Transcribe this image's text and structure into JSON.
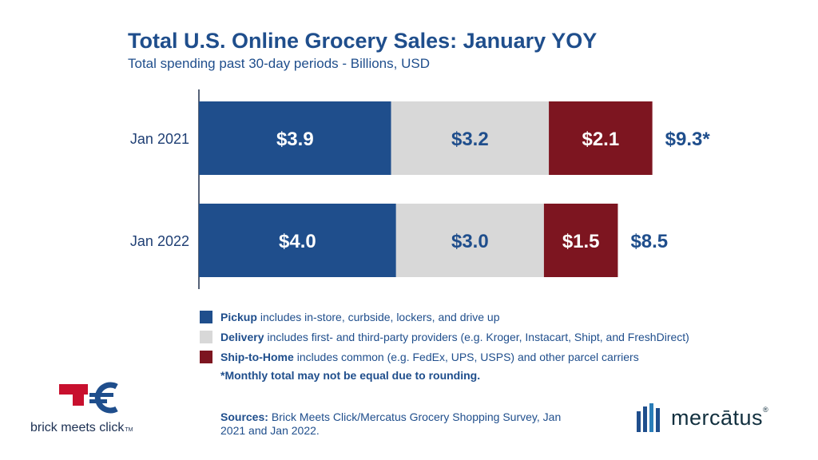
{
  "header": {
    "title": "Total U.S. Online Grocery Sales: January YOY",
    "subtitle": "Total spending past 30-day periods - Billions, USD"
  },
  "chart_data": {
    "type": "bar",
    "orientation": "horizontal",
    "stacked": true,
    "categories": [
      "Jan 2021",
      "Jan 2022"
    ],
    "series": [
      {
        "name": "Pickup",
        "values": [
          3.9,
          4.0
        ],
        "labels": [
          "$3.9",
          "$4.0"
        ],
        "color": "#1f4e8c",
        "label_color": "#ffffff"
      },
      {
        "name": "Delivery",
        "values": [
          3.2,
          3.0
        ],
        "labels": [
          "$3.2",
          "$3.0"
        ],
        "color": "#d8d8d8",
        "label_color": "#1f4e8c"
      },
      {
        "name": "Ship-to-Home",
        "values": [
          2.1,
          1.5
        ],
        "labels": [
          "$2.1",
          "$1.5"
        ],
        "color": "#7d1520",
        "label_color": "#ffffff"
      }
    ],
    "totals": [
      "$9.3*",
      "$8.5"
    ],
    "xlim": [
      0,
      15
    ],
    "grid": false,
    "legend_placement": "bottom"
  },
  "legend": [
    {
      "name": "Pickup",
      "desc": "includes in-store, curbside, lockers, and drive up",
      "color": "#1f4e8c"
    },
    {
      "name": "Delivery",
      "desc": "includes first- and third-party providers (e.g. Kroger, Instacart, Shipt, and FreshDirect)",
      "color": "#d8d8d8"
    },
    {
      "name": "Ship-to-Home",
      "desc": "includes common (e.g. FedEx, UPS, USPS) and other parcel carriers",
      "color": "#7d1520"
    }
  ],
  "footnote": "*Monthly total may not be equal due to rounding.",
  "sources": {
    "label": "Sources:",
    "text": "Brick Meets Click/Mercatus Grocery Shopping Survey, Jan 2021 and Jan 2022."
  },
  "logos": {
    "left": {
      "text": "brick meets click",
      "tm": "TM",
      "icon": "brick-meets-click-logo"
    },
    "right": {
      "text": "mercātus",
      "reg": "®",
      "icon": "mercatus-bars-logo"
    }
  }
}
